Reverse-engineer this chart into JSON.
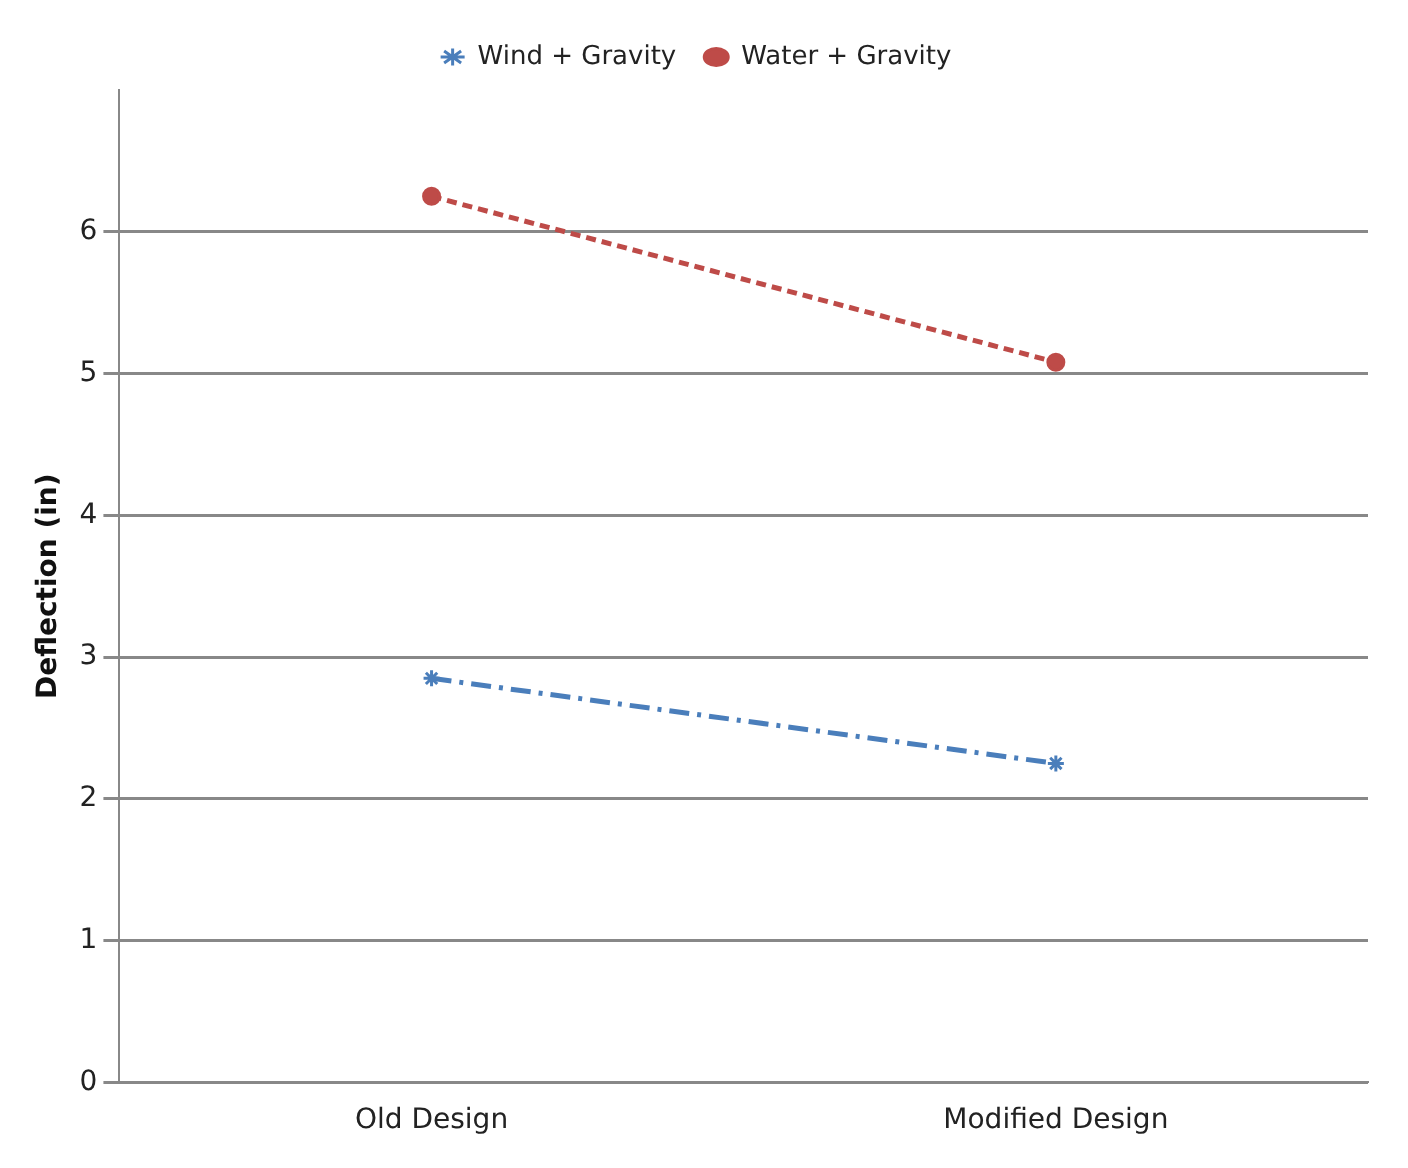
{
  "chart_data": {
    "type": "line",
    "ylabel": "Deflection (in)",
    "categories": [
      "Old Design",
      "Modified Design"
    ],
    "series": [
      {
        "name": "Wind + Gravity",
        "color": "#4a7ebb",
        "values": [
          2.85,
          2.25
        ],
        "marker": "cross",
        "line_style": "dashed"
      },
      {
        "name": "Water + Gravity",
        "color": "#be4b48",
        "values": [
          6.25,
          5.08
        ],
        "marker": "circle",
        "line_style": "dotted"
      }
    ],
    "ylim": [
      0,
      7
    ],
    "yticks": [
      0,
      1,
      2,
      3,
      4,
      5,
      6
    ],
    "grid": "y",
    "legend": "top"
  }
}
